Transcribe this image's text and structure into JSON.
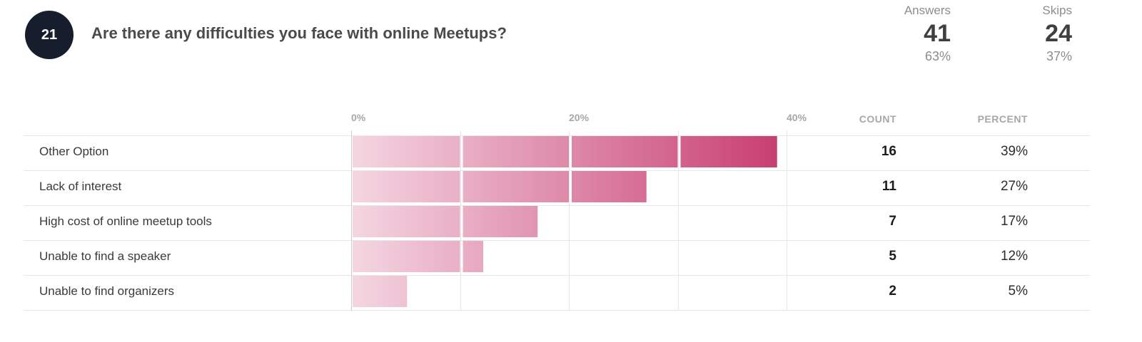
{
  "question": {
    "number": "21",
    "title": "Are there any difficulties you face with online Meetups?"
  },
  "stats": {
    "answers": {
      "label": "Answers",
      "value": "41",
      "percent": "63%"
    },
    "skips": {
      "label": "Skips",
      "value": "24",
      "percent": "37%"
    }
  },
  "table": {
    "count_header": "COUNT",
    "percent_header": "PERCENT"
  },
  "chart_data": {
    "type": "bar",
    "orientation": "horizontal",
    "categories": [
      "Other Option",
      "Lack of interest",
      "High cost of online meetup tools",
      "Unable to find a speaker",
      "Unable to find organizers"
    ],
    "values": [
      39,
      27,
      17,
      12,
      5
    ],
    "counts": [
      16,
      11,
      7,
      5,
      2
    ],
    "percent_labels": [
      "39%",
      "27%",
      "17%",
      "12%",
      "5%"
    ],
    "xlim": [
      0,
      40
    ],
    "tick_values": [
      0,
      20,
      40
    ],
    "tick_labels": [
      "0%",
      "20%",
      "40%"
    ],
    "segment_step": 10,
    "grid": true,
    "colors": {
      "start": "#f4d6e1",
      "end": "#c73b6f"
    }
  }
}
